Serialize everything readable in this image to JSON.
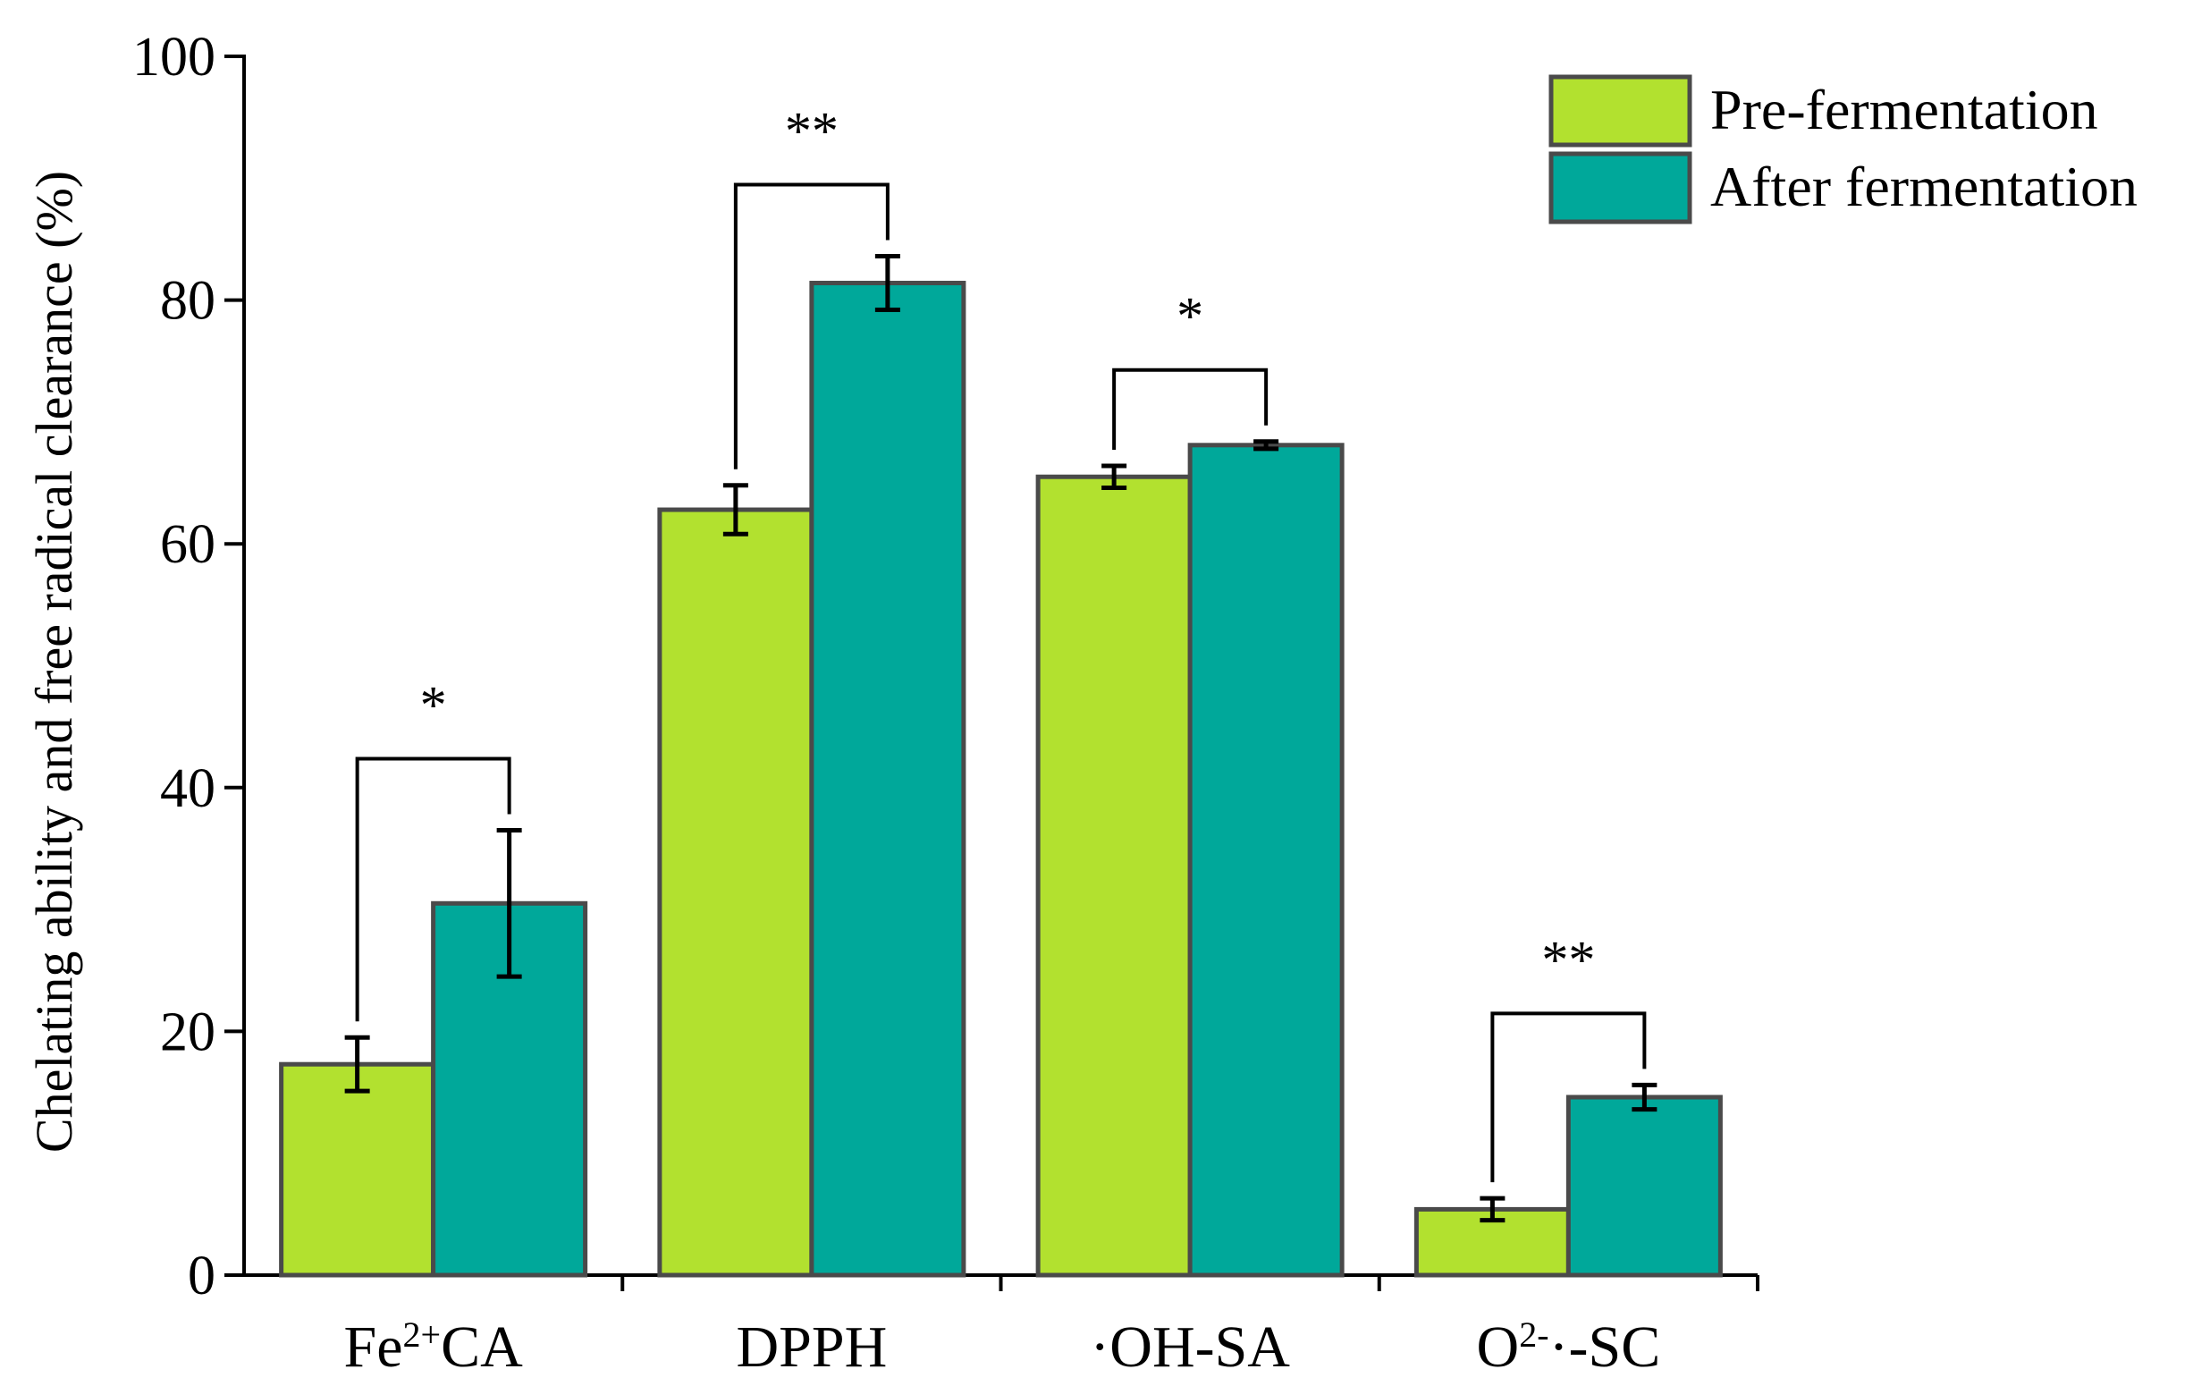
{
  "chart_data": {
    "type": "bar",
    "title": "",
    "xlabel": "",
    "ylabel": "Chelating ability and free radical clearance (%)",
    "ylim": [
      0,
      100
    ],
    "yticks": [
      0,
      20,
      40,
      60,
      80,
      100
    ],
    "categories": [
      {
        "main": "Fe",
        "sup": "2+",
        "tail": "CA"
      },
      {
        "main": "DPPH",
        "sup": "",
        "tail": ""
      },
      {
        "main": "·OH-SA",
        "sup": "",
        "tail": ""
      },
      {
        "main": "O",
        "sup": "2-",
        "tail": "·-SC"
      }
    ],
    "series": [
      {
        "name": "Pre-fermentation",
        "color": "#b2e12f",
        "values": [
          17.3,
          62.8,
          65.5,
          5.4
        ],
        "errors": [
          2.2,
          2.0,
          0.9,
          0.9
        ]
      },
      {
        "name": "After fermentation",
        "color": "#00a89a",
        "values": [
          30.5,
          81.4,
          68.1,
          14.6
        ],
        "errors": [
          6.0,
          2.2,
          0.3,
          1.0
        ]
      }
    ],
    "significance": [
      "*",
      "**",
      "*",
      "**"
    ],
    "legend_position": "top-right",
    "edge_color": "#4a4a4a"
  }
}
